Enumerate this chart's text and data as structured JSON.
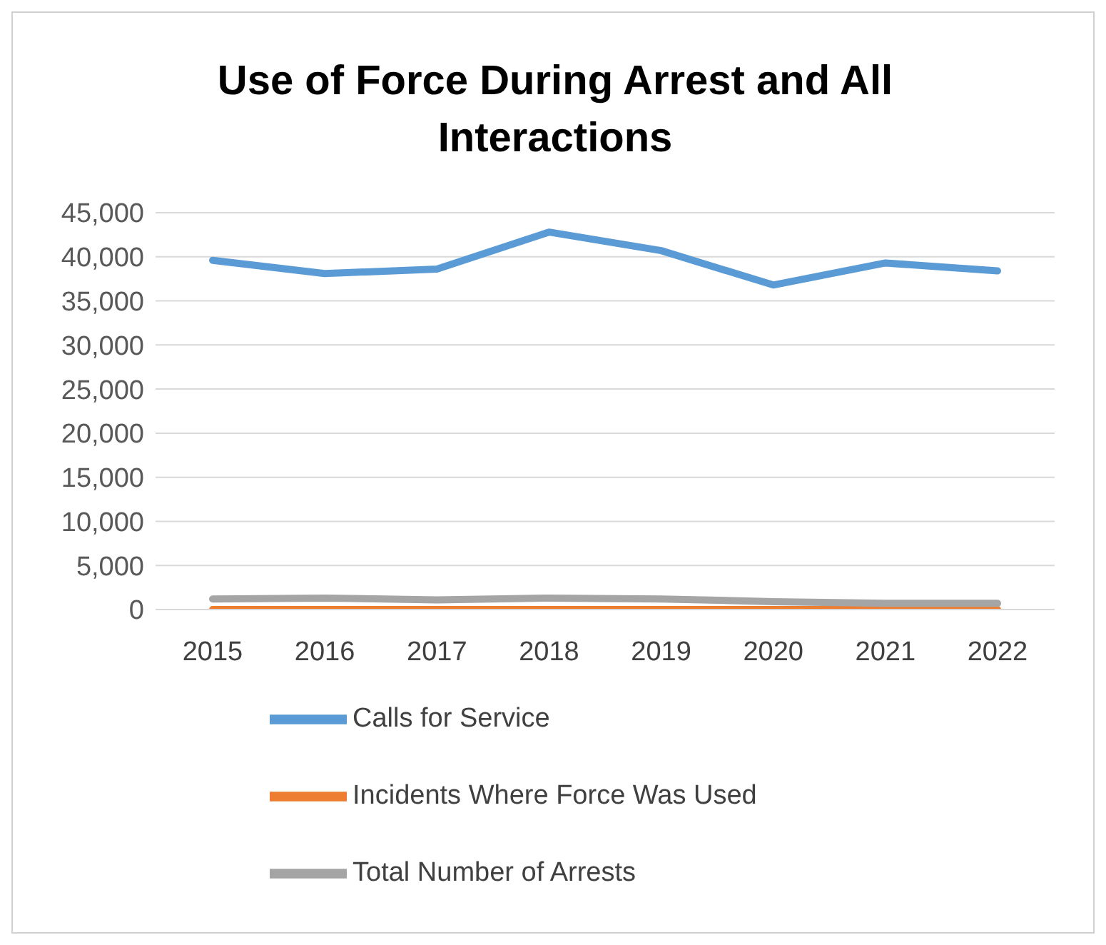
{
  "chart_data": {
    "type": "line",
    "title": "Use of Force During Arrest and All Interactions",
    "categories": [
      "2015",
      "2016",
      "2017",
      "2018",
      "2019",
      "2020",
      "2021",
      "2022"
    ],
    "series": [
      {
        "name": "Calls for Service",
        "color": "#5b9bd5",
        "values": [
          39600,
          38100,
          38600,
          42800,
          40700,
          36800,
          39300,
          38400
        ]
      },
      {
        "name": "Incidents Where Force Was Used",
        "color": "#ed7d31",
        "values": [
          0,
          0,
          0,
          0,
          0,
          0,
          0,
          0
        ]
      },
      {
        "name": "Total Number of Arrests",
        "color": "#a5a5a5",
        "values": [
          1200,
          1300,
          1100,
          1300,
          1200,
          900,
          700,
          700
        ]
      }
    ],
    "ylim": [
      0,
      45000
    ],
    "yticks": [
      0,
      {
        "value": 5000,
        "label": "5,000"
      },
      {
        "value": 10000,
        "label": "10,000"
      },
      {
        "value": 15000,
        "label": "15,000"
      },
      {
        "value": 20000,
        "label": "20,000"
      },
      {
        "value": 25000,
        "label": "25,000"
      },
      {
        "value": 30000,
        "label": "30,000"
      },
      {
        "value": 35000,
        "label": "35,000"
      },
      {
        "value": 40000,
        "label": "40,000"
      },
      {
        "value": 45000,
        "label": "45,000"
      }
    ],
    "grid": "y",
    "legend": "bottom",
    "marker": "none"
  }
}
